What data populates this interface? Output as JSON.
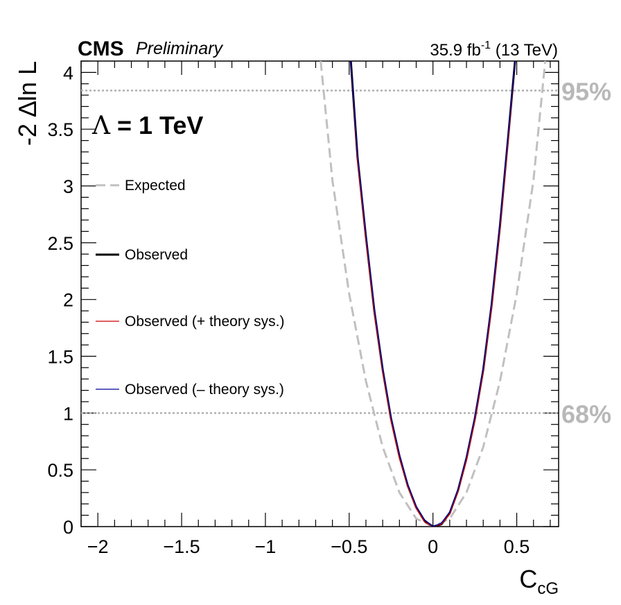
{
  "header": {
    "experiment": "CMS",
    "status": "Preliminary",
    "lumi_value": "35.9 fb",
    "lumi_exp": "-1",
    "energy": " (13 TeV)"
  },
  "annotation": {
    "lambda_symbol": "Λ",
    "lambda_text": " = 1 TeV"
  },
  "axes": {
    "xlabel_main": "C",
    "xlabel_sub": "cG",
    "ylabel": "-2 ∆ln L"
  },
  "legend": [
    {
      "key": "expected",
      "label": "Expected"
    },
    {
      "key": "observed",
      "label": "Observed"
    },
    {
      "key": "obs_plus",
      "label": "Observed (+ theory sys.)"
    },
    {
      "key": "obs_minus",
      "label": "Observed (– theory sys.)"
    }
  ],
  "colors": {
    "expected": "#c0c0c0",
    "observed": "#000000",
    "obs_plus": "#cc0000",
    "obs_minus": "#000099",
    "cl_lines": "#b0b0b0",
    "cl_text": "#b8b8b8"
  },
  "chart_data": {
    "type": "line",
    "xlim": [
      -2.1,
      0.75
    ],
    "ylim": [
      0,
      4.1
    ],
    "xticks": [
      {
        "value": -2,
        "label": "−2"
      },
      {
        "value": -1.5,
        "label": "−1.5"
      },
      {
        "value": -1,
        "label": "−1"
      },
      {
        "value": -0.5,
        "label": "−0.5"
      },
      {
        "value": 0,
        "label": "0"
      },
      {
        "value": 0.5,
        "label": "0.5"
      }
    ],
    "yticks": [
      {
        "value": 0,
        "label": "0"
      },
      {
        "value": 0.5,
        "label": "0.5"
      },
      {
        "value": 1,
        "label": "1"
      },
      {
        "value": 1.5,
        "label": "1.5"
      },
      {
        "value": 2,
        "label": "2"
      },
      {
        "value": 2.5,
        "label": "2.5"
      },
      {
        "value": 3,
        "label": "3"
      },
      {
        "value": 3.5,
        "label": "3.5"
      },
      {
        "value": 4,
        "label": "4"
      }
    ],
    "confidence_levels": [
      {
        "value": 1.0,
        "label": "68%"
      },
      {
        "value": 3.84,
        "label": "95%"
      }
    ],
    "series": [
      {
        "key": "expected",
        "name": "Expected",
        "x": [
          -0.67,
          -0.6,
          -0.5,
          -0.4,
          -0.3,
          -0.2,
          -0.1,
          0.0,
          0.1,
          0.2,
          0.3,
          0.4,
          0.5,
          0.6,
          0.67
        ],
        "y": [
          4.1,
          3.05,
          2.05,
          1.28,
          0.7,
          0.3,
          0.07,
          0.0,
          0.07,
          0.3,
          0.7,
          1.28,
          2.05,
          3.05,
          4.1
        ]
      },
      {
        "key": "observed",
        "name": "Observed",
        "x": [
          -0.49,
          -0.45,
          -0.4,
          -0.35,
          -0.3,
          -0.25,
          -0.2,
          -0.15,
          -0.1,
          -0.05,
          0.0,
          0.05,
          0.1,
          0.15,
          0.2,
          0.25,
          0.3,
          0.35,
          0.4,
          0.45,
          0.49
        ],
        "y": [
          4.1,
          3.25,
          2.55,
          1.9,
          1.38,
          0.95,
          0.62,
          0.36,
          0.17,
          0.05,
          0.0,
          0.02,
          0.12,
          0.32,
          0.6,
          0.95,
          1.38,
          1.95,
          2.65,
          3.45,
          4.1
        ]
      },
      {
        "key": "obs_plus",
        "name": "Observed (+ theory sys.)",
        "x": [
          -0.49,
          -0.45,
          -0.4,
          -0.35,
          -0.3,
          -0.25,
          -0.2,
          -0.15,
          -0.1,
          -0.05,
          0.0,
          0.05,
          0.1,
          0.15,
          0.2,
          0.25,
          0.3,
          0.35,
          0.4,
          0.45,
          0.49
        ],
        "y": [
          4.1,
          3.22,
          2.52,
          1.88,
          1.36,
          0.93,
          0.6,
          0.35,
          0.16,
          0.04,
          0.0,
          0.02,
          0.11,
          0.31,
          0.58,
          0.93,
          1.36,
          1.92,
          2.62,
          3.42,
          4.1
        ]
      },
      {
        "key": "obs_minus",
        "name": "Observed (– theory sys.)",
        "x": [
          -0.49,
          -0.45,
          -0.4,
          -0.35,
          -0.3,
          -0.25,
          -0.2,
          -0.15,
          -0.1,
          -0.05,
          0.0,
          0.05,
          0.1,
          0.15,
          0.2,
          0.25,
          0.3,
          0.35,
          0.4,
          0.45,
          0.49
        ],
        "y": [
          4.1,
          3.28,
          2.58,
          1.93,
          1.4,
          0.97,
          0.64,
          0.37,
          0.18,
          0.06,
          0.0,
          0.03,
          0.13,
          0.33,
          0.62,
          0.97,
          1.4,
          1.98,
          2.68,
          3.48,
          4.1
        ]
      }
    ]
  }
}
